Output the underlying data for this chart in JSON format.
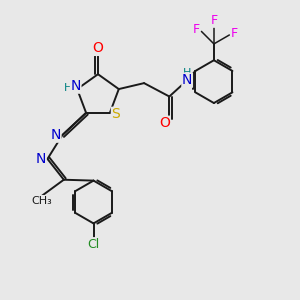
{
  "bg_color": "#e8e8e8",
  "atom_colors": {
    "O": "#ff0000",
    "N": "#0000cd",
    "S": "#ccaa00",
    "H": "#008080",
    "F": "#ee00ee",
    "Cl": "#228b22",
    "C": "#1a1a1a"
  },
  "font_size": 9,
  "bond_lw": 1.4
}
